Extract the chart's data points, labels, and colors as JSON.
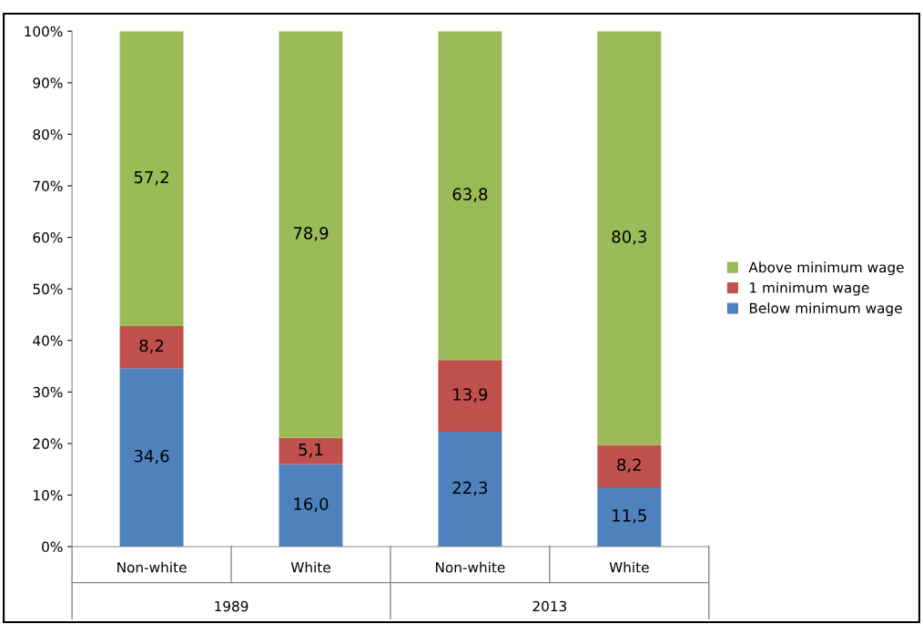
{
  "chart_data": {
    "type": "bar",
    "stacked": true,
    "categories": [
      "Non-white",
      "White",
      "Non-white",
      "White"
    ],
    "annotations": [
      "1989",
      "2013"
    ],
    "series": [
      {
        "name": "Below minimum wage",
        "color": "#4f81bd",
        "values": [
          34.6,
          16.0,
          22.3,
          11.5
        ],
        "value_labels": [
          "34,6",
          "16,0",
          "22,3",
          "11,5"
        ]
      },
      {
        "name": "1 minimum wage",
        "color": "#c0504d",
        "values": [
          8.2,
          5.1,
          13.9,
          8.2
        ],
        "value_labels": [
          "8,2",
          "5,1",
          "13,9",
          "8,2"
        ]
      },
      {
        "name": "Above minimum wage",
        "color": "#9bbb59",
        "values": [
          57.2,
          78.9,
          63.8,
          80.3
        ],
        "value_labels": [
          "57,2",
          "78,9",
          "63,8",
          "80,3"
        ]
      }
    ],
    "ylim": [
      0,
      100
    ],
    "yticks": [
      {
        "value": 0,
        "label": "0%"
      },
      {
        "value": 10,
        "label": "10%"
      },
      {
        "value": 20,
        "label": "20%"
      },
      {
        "value": 30,
        "label": "30%"
      },
      {
        "value": 40,
        "label": "40%"
      },
      {
        "value": 50,
        "label": "50%"
      },
      {
        "value": 60,
        "label": "60%"
      },
      {
        "value": 70,
        "label": "70%"
      },
      {
        "value": 80,
        "label": "80%"
      },
      {
        "value": 90,
        "label": "90%"
      },
      {
        "value": 100,
        "label": "100%"
      }
    ],
    "grid": false,
    "legend": "right"
  }
}
